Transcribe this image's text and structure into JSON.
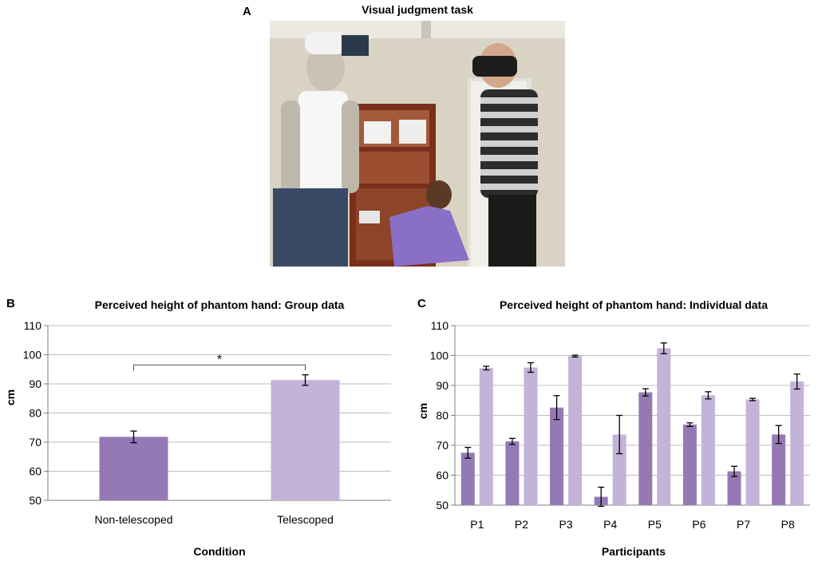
{
  "figure": {
    "panel_a": {
      "letter": "A",
      "title": "Visual judgment task"
    },
    "panel_b": {
      "letter": "B"
    },
    "panel_c": {
      "letter": "C"
    }
  },
  "colors": {
    "non_telescoped": "#9579b4",
    "telescoped": "#c4b3d8",
    "gridline": "#bdbdbd",
    "axis": "#7f7f7f"
  },
  "chart_data": [
    {
      "type": "bar",
      "title": "Perceived height of phantom hand: Group data",
      "xlabel": "Condition",
      "ylabel": "cm",
      "ylim": [
        50,
        110
      ],
      "yticks": [
        50,
        60,
        70,
        80,
        90,
        100,
        110
      ],
      "grid": true,
      "categories": [
        "Non-telescoped",
        "Telescoped"
      ],
      "values": [
        71.8,
        91.3
      ],
      "errors": [
        2.0,
        1.8
      ],
      "bar_colors": [
        "#9579b4",
        "#c4b3d8"
      ],
      "annotation": {
        "text": "*",
        "between": [
          "Non-telescoped",
          "Telescoped"
        ],
        "y": 96.5
      }
    },
    {
      "type": "bar",
      "title": "Perceived height of phantom hand: Individual data",
      "xlabel": "Participants",
      "ylabel": "cm",
      "ylim": [
        50,
        110
      ],
      "yticks": [
        50,
        60,
        70,
        80,
        90,
        100,
        110
      ],
      "grid": true,
      "categories": [
        "P1",
        "P2",
        "P3",
        "P4",
        "P5",
        "P6",
        "P7",
        "P8"
      ],
      "series": [
        {
          "values": [
            67.5,
            71.3,
            82.6,
            52.8,
            87.7,
            76.9,
            61.3,
            73.6
          ],
          "errors": [
            1.8,
            1.0,
            4.0,
            3.2,
            1.2,
            0.6,
            1.7,
            3.0
          ],
          "color": "#9579b4"
        },
        {
          "values": [
            95.8,
            96.0,
            99.8,
            73.6,
            102.4,
            86.7,
            85.3,
            91.3
          ],
          "errors": [
            0.6,
            1.6,
            0.3,
            6.4,
            1.8,
            1.2,
            0.4,
            2.5
          ],
          "color": "#c4b3d8"
        }
      ]
    }
  ]
}
